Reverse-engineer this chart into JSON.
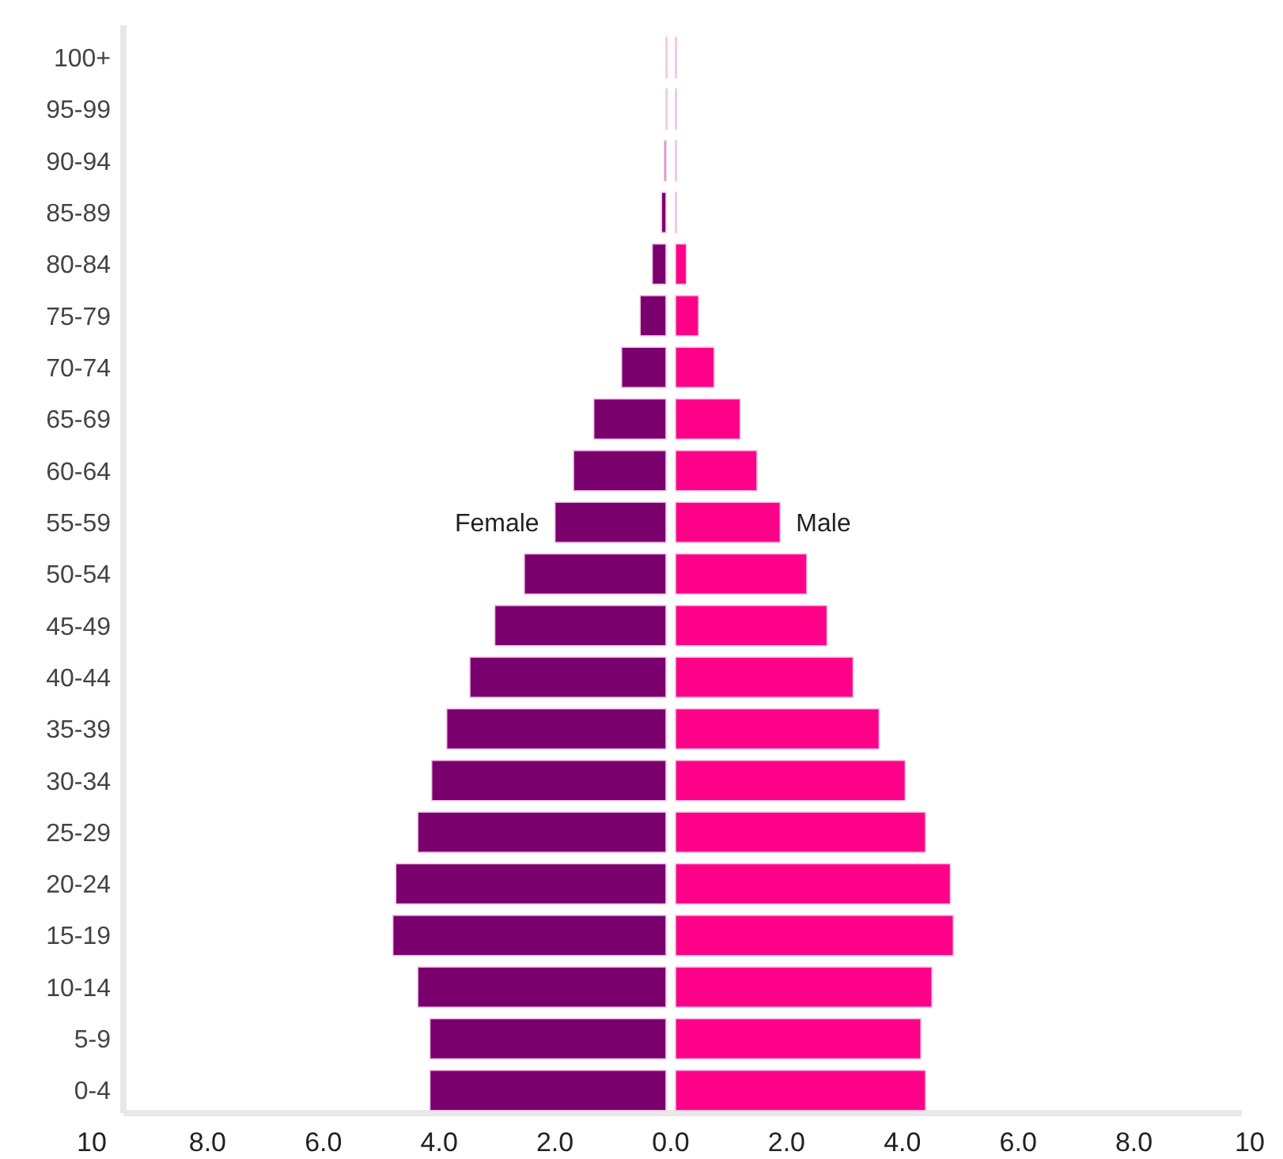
{
  "chart_data": {
    "type": "bar",
    "orientation": "horizontal",
    "stacked": true,
    "grid": false,
    "categories": [
      "100+",
      "95-99",
      "90-94",
      "85-89",
      "80-84",
      "75-79",
      "70-74",
      "65-69",
      "60-64",
      "55-59",
      "50-54",
      "45-49",
      "40-44",
      "35-39",
      "30-34",
      "25-29",
      "20-24",
      "15-19",
      "10-14",
      "5-9",
      "0-4"
    ],
    "series": [
      {
        "name": "Female",
        "color": "#7a006e",
        "values": [
          -0.08,
          -0.08,
          -0.11,
          -0.16,
          -0.32,
          -0.53,
          -0.85,
          -1.33,
          -1.68,
          -2.0,
          -2.53,
          -3.04,
          -3.47,
          -3.87,
          -4.13,
          -4.37,
          -4.75,
          -4.8,
          -4.37,
          -4.16,
          -4.16
        ]
      },
      {
        "name": "Male",
        "color": "#ff0088",
        "values": [
          0.05,
          0.05,
          0.05,
          0.08,
          0.27,
          0.48,
          0.75,
          1.2,
          1.49,
          1.89,
          2.35,
          2.7,
          3.15,
          3.6,
          4.05,
          4.4,
          4.83,
          4.88,
          4.51,
          4.32,
          4.4
        ]
      }
    ],
    "xlim": [
      -10,
      10
    ],
    "xticks": [
      {
        "value": -10,
        "label": "10"
      },
      {
        "value": -8,
        "label": "8.0"
      },
      {
        "value": -6,
        "label": "6.0"
      },
      {
        "value": -4,
        "label": "4.0"
      },
      {
        "value": -2,
        "label": "2.0"
      },
      {
        "value": 0,
        "label": "0.0"
      },
      {
        "value": 2,
        "label": "2.0"
      },
      {
        "value": 4,
        "label": "4.0"
      },
      {
        "value": 6,
        "label": "6.0"
      },
      {
        "value": 8,
        "label": "8.0"
      },
      {
        "value": 10,
        "label": "10"
      }
    ]
  }
}
